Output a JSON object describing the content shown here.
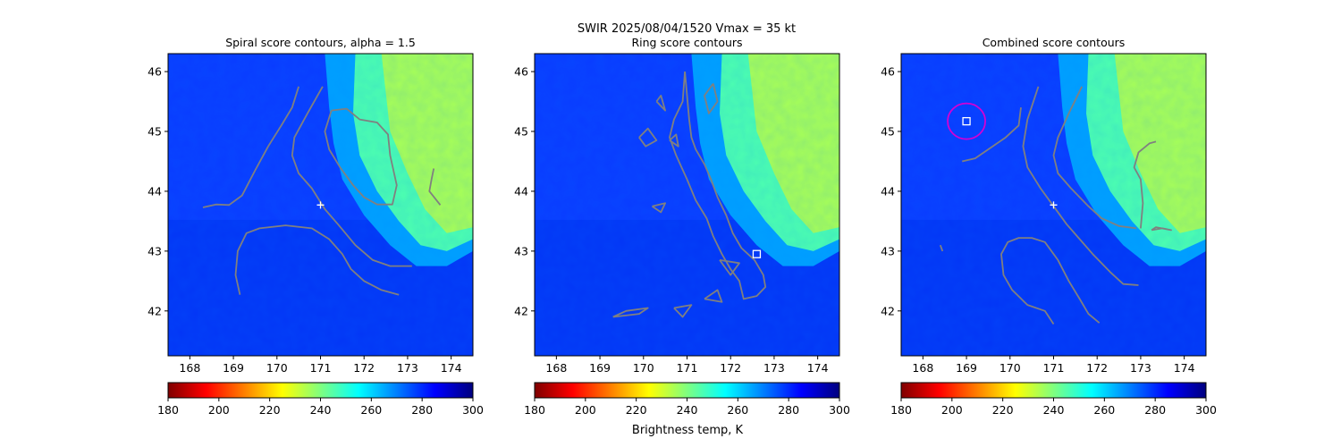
{
  "suptitle": "SWIR  2025/08/04/1520    Vmax = 35 kt",
  "colorbar_label": "Brightness temp, K",
  "colormap": [
    "#7f0000",
    "#ff0000",
    "#ff7f00",
    "#ffff00",
    "#7fff7f",
    "#00ffff",
    "#007fff",
    "#0000ff",
    "#00007f"
  ],
  "contour_color": "#808080",
  "marker_color": "#ffffff",
  "circle_color": "#d400d4",
  "chart_data": [
    {
      "type": "heatmap",
      "title": "Spiral score contours, alpha =  1.5",
      "xlim": [
        167.5,
        174.5
      ],
      "ylim": [
        41.25,
        46.3
      ],
      "xticks": [
        "168",
        "169",
        "170",
        "171",
        "172",
        "173",
        "174"
      ],
      "yticks": [
        "42",
        "43",
        "44",
        "45",
        "46"
      ],
      "colorbar": {
        "range": [
          180,
          300
        ],
        "ticks": [
          "180",
          "200",
          "220",
          "240",
          "260",
          "280",
          "300"
        ]
      },
      "center_marker": {
        "shape": "plus",
        "x": 171.0,
        "y": 43.77
      },
      "contours": [
        [
          [
            168.3,
            43.73
          ],
          [
            168.6,
            43.78
          ],
          [
            168.9,
            43.77
          ],
          [
            169.2,
            43.93
          ],
          [
            169.5,
            44.35
          ],
          [
            169.8,
            44.75
          ],
          [
            170.1,
            45.1
          ],
          [
            170.35,
            45.4
          ],
          [
            170.5,
            45.75
          ]
        ],
        [
          [
            171.05,
            45.75
          ],
          [
            170.7,
            45.3
          ],
          [
            170.4,
            44.9
          ],
          [
            170.35,
            44.6
          ],
          [
            170.5,
            44.3
          ],
          [
            170.8,
            44.05
          ],
          [
            171.1,
            43.7
          ],
          [
            171.4,
            43.45
          ],
          [
            171.8,
            43.1
          ],
          [
            172.2,
            42.85
          ],
          [
            172.6,
            42.75
          ],
          [
            172.9,
            42.75
          ],
          [
            173.1,
            42.75
          ]
        ],
        [
          [
            169.15,
            42.27
          ],
          [
            169.05,
            42.6
          ],
          [
            169.1,
            43.0
          ],
          [
            169.3,
            43.3
          ],
          [
            169.6,
            43.38
          ],
          [
            170.2,
            43.43
          ],
          [
            170.8,
            43.38
          ],
          [
            171.2,
            43.2
          ],
          [
            171.5,
            42.95
          ],
          [
            171.7,
            42.7
          ],
          [
            172.0,
            42.5
          ],
          [
            172.4,
            42.35
          ],
          [
            172.8,
            42.27
          ]
        ],
        [
          [
            171.25,
            45.35
          ],
          [
            171.1,
            45.0
          ],
          [
            171.2,
            44.7
          ],
          [
            171.45,
            44.4
          ],
          [
            171.75,
            44.1
          ],
          [
            172.0,
            43.9
          ],
          [
            172.3,
            43.78
          ],
          [
            172.65,
            43.78
          ],
          [
            172.75,
            44.1
          ],
          [
            172.6,
            44.6
          ],
          [
            172.55,
            44.95
          ],
          [
            172.3,
            45.15
          ],
          [
            171.9,
            45.2
          ],
          [
            171.6,
            45.38
          ],
          [
            171.25,
            45.35
          ]
        ],
        [
          [
            173.75,
            43.77
          ],
          [
            173.5,
            44.0
          ],
          [
            173.55,
            44.2
          ],
          [
            173.6,
            44.38
          ]
        ]
      ]
    },
    {
      "type": "heatmap",
      "title": "Ring score contours",
      "xlim": [
        167.5,
        174.5
      ],
      "ylim": [
        41.25,
        46.3
      ],
      "xticks": [
        "168",
        "169",
        "170",
        "171",
        "172",
        "173",
        "174"
      ],
      "yticks": [
        "42",
        "43",
        "44",
        "45",
        "46"
      ],
      "colorbar": {
        "range": [
          180,
          300
        ],
        "ticks": [
          "180",
          "200",
          "220",
          "240",
          "260",
          "280",
          "300"
        ]
      },
      "center_marker": {
        "shape": "square",
        "x": 172.6,
        "y": 42.95
      },
      "contours": [
        [
          [
            170.95,
            46.0
          ],
          [
            171.0,
            45.6
          ],
          [
            171.05,
            45.2
          ],
          [
            171.1,
            44.9
          ],
          [
            171.2,
            44.7
          ],
          [
            171.4,
            44.45
          ],
          [
            171.55,
            44.2
          ],
          [
            171.7,
            43.9
          ],
          [
            171.9,
            43.6
          ],
          [
            172.05,
            43.3
          ],
          [
            172.25,
            43.05
          ],
          [
            172.55,
            42.85
          ],
          [
            172.75,
            42.6
          ],
          [
            172.8,
            42.4
          ],
          [
            172.6,
            42.25
          ],
          [
            172.3,
            42.2
          ],
          [
            172.2,
            42.5
          ],
          [
            172.0,
            42.7
          ],
          [
            171.8,
            42.95
          ],
          [
            171.6,
            43.25
          ],
          [
            171.45,
            43.55
          ],
          [
            171.2,
            43.85
          ],
          [
            171.0,
            44.2
          ],
          [
            170.75,
            44.6
          ],
          [
            170.6,
            44.9
          ],
          [
            170.7,
            45.2
          ],
          [
            170.9,
            45.5
          ],
          [
            170.95,
            46.0
          ]
        ],
        [
          [
            171.6,
            45.8
          ],
          [
            171.4,
            45.6
          ],
          [
            171.5,
            45.3
          ],
          [
            171.7,
            45.5
          ],
          [
            171.6,
            45.8
          ]
        ],
        [
          [
            170.3,
            45.5
          ],
          [
            170.4,
            45.6
          ],
          [
            170.5,
            45.35
          ],
          [
            170.3,
            45.5
          ]
        ],
        [
          [
            169.9,
            44.9
          ],
          [
            170.1,
            45.05
          ],
          [
            170.3,
            44.85
          ],
          [
            170.05,
            44.75
          ],
          [
            169.9,
            44.9
          ]
        ],
        [
          [
            170.6,
            44.85
          ],
          [
            170.75,
            44.95
          ],
          [
            170.8,
            44.75
          ],
          [
            170.6,
            44.85
          ]
        ],
        [
          [
            170.2,
            43.75
          ],
          [
            170.5,
            43.8
          ],
          [
            170.4,
            43.65
          ],
          [
            170.2,
            43.75
          ]
        ],
        [
          [
            171.75,
            42.85
          ],
          [
            172.2,
            42.8
          ],
          [
            172.0,
            42.6
          ],
          [
            171.75,
            42.85
          ]
        ],
        [
          [
            171.4,
            42.2
          ],
          [
            171.7,
            42.35
          ],
          [
            171.8,
            42.15
          ],
          [
            171.4,
            42.2
          ]
        ],
        [
          [
            170.7,
            42.05
          ],
          [
            171.1,
            42.1
          ],
          [
            170.9,
            41.9
          ],
          [
            170.7,
            42.05
          ]
        ],
        [
          [
            169.3,
            41.9
          ],
          [
            169.9,
            41.95
          ],
          [
            170.1,
            42.05
          ],
          [
            169.6,
            42.0
          ],
          [
            169.3,
            41.9
          ]
        ]
      ]
    },
    {
      "type": "heatmap",
      "title": "Combined score contours",
      "xlim": [
        167.5,
        174.5
      ],
      "ylim": [
        41.25,
        46.3
      ],
      "xticks": [
        "168",
        "169",
        "170",
        "171",
        "172",
        "173",
        "174"
      ],
      "yticks": [
        "42",
        "43",
        "44",
        "45",
        "46"
      ],
      "colorbar": {
        "range": [
          180,
          300
        ],
        "ticks": [
          "180",
          "200",
          "220",
          "240",
          "260",
          "280",
          "300"
        ]
      },
      "center_marker": {
        "shape": "plus",
        "x": 171.0,
        "y": 43.77
      },
      "square_marker": {
        "x": 169.0,
        "y": 45.17
      },
      "contours": [
        [
          [
            168.9,
            44.5
          ],
          [
            169.2,
            44.55
          ],
          [
            169.5,
            44.7
          ],
          [
            169.9,
            44.9
          ],
          [
            170.2,
            45.1
          ],
          [
            170.25,
            45.4
          ]
        ],
        [
          [
            171.65,
            45.75
          ],
          [
            171.35,
            45.3
          ],
          [
            171.1,
            44.9
          ],
          [
            171.0,
            44.6
          ],
          [
            171.1,
            44.3
          ],
          [
            171.4,
            44.05
          ],
          [
            171.8,
            43.75
          ],
          [
            172.1,
            43.55
          ],
          [
            172.5,
            43.42
          ],
          [
            172.9,
            43.38
          ]
        ],
        [
          [
            170.65,
            45.75
          ],
          [
            170.4,
            45.2
          ],
          [
            170.3,
            44.75
          ],
          [
            170.4,
            44.4
          ],
          [
            170.7,
            44.05
          ],
          [
            171.0,
            43.75
          ],
          [
            171.3,
            43.45
          ],
          [
            171.6,
            43.2
          ],
          [
            171.9,
            42.95
          ],
          [
            172.3,
            42.65
          ],
          [
            172.6,
            42.45
          ],
          [
            172.95,
            42.43
          ]
        ],
        [
          [
            171.0,
            41.78
          ],
          [
            170.8,
            42.0
          ],
          [
            170.4,
            42.1
          ],
          [
            170.05,
            42.35
          ],
          [
            169.85,
            42.6
          ],
          [
            169.8,
            42.95
          ],
          [
            169.95,
            43.15
          ],
          [
            170.2,
            43.22
          ],
          [
            170.5,
            43.22
          ],
          [
            170.8,
            43.15
          ],
          [
            171.1,
            42.85
          ],
          [
            171.35,
            42.5
          ],
          [
            171.6,
            42.2
          ],
          [
            171.8,
            41.95
          ],
          [
            172.05,
            41.8
          ]
        ],
        [
          [
            173.0,
            43.38
          ],
          [
            173.05,
            43.8
          ],
          [
            173.0,
            44.2
          ],
          [
            172.85,
            44.4
          ],
          [
            172.95,
            44.65
          ],
          [
            173.2,
            44.8
          ],
          [
            173.35,
            44.83
          ]
        ],
        [
          [
            173.25,
            43.35
          ],
          [
            173.5,
            43.38
          ],
          [
            173.7,
            43.35
          ],
          [
            173.35,
            43.4
          ],
          [
            173.25,
            43.35
          ]
        ],
        [
          [
            168.4,
            43.1
          ],
          [
            168.45,
            43.0
          ]
        ]
      ]
    }
  ]
}
